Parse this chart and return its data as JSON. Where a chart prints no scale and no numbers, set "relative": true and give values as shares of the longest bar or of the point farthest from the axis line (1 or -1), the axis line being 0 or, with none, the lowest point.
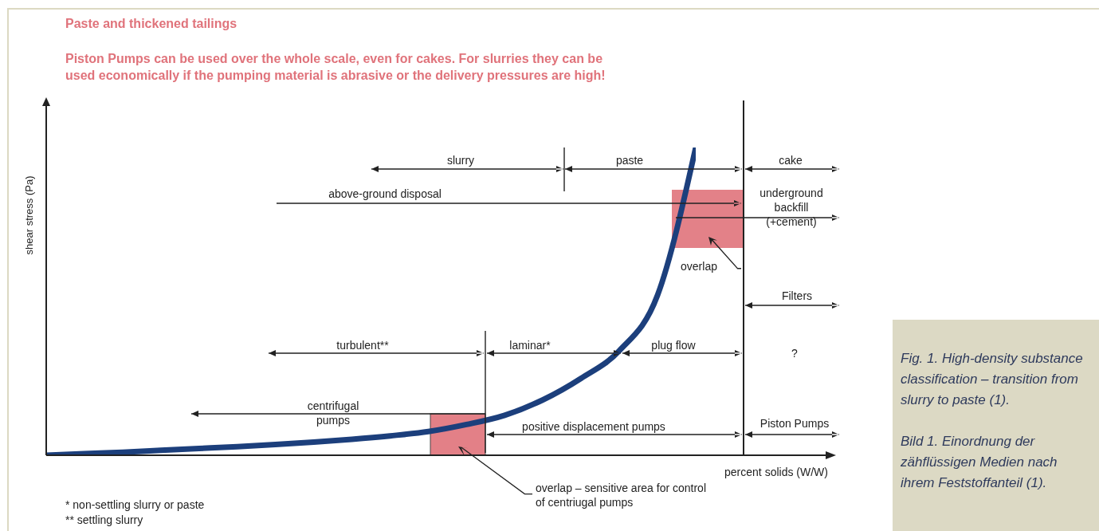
{
  "chart_data": {
    "type": "line",
    "title": "Paste and thickened tailings",
    "subtitle": "Piston Pumps can be used over the whole scale, even for cakes. For slurries they can be used economically if the pumping material is abrasive or the delivery pressures are high!",
    "xlabel": "percent solids (W/W)",
    "ylabel": "shear stress (Pa)",
    "relative": true,
    "marker": "none",
    "categories": [
      null,
      null,
      null,
      null,
      null,
      null,
      null,
      null,
      null,
      null,
      null,
      null,
      null,
      null,
      null,
      null,
      null,
      null
    ],
    "series": [
      {
        "color": "#1c3f7c",
        "values": [
          0,
          0.005,
          0.01,
          0.016,
          0.022,
          0.028,
          0.035,
          0.043,
          0.052,
          0.063,
          0.077,
          0.1,
          0.13,
          0.18,
          0.25,
          0.34,
          0.52,
          1
        ]
      }
    ],
    "annotations": [
      "slurry",
      "paste",
      "cake",
      "above-ground disposal",
      "underground backfill (+cement)",
      "overlap",
      "Filters",
      "?",
      "turbulent**",
      "laminar*",
      "plug flow",
      "centrifugal pumps",
      "positive displacement pumps",
      "Piston Pumps",
      "overlap – sensitive area for control of centriugal pumps",
      "* non-settling slurry or paste",
      "** settling slurry",
      "Fig. 1. High-density substance classification – transition from slurry to paste (1).",
      "Bild 1. Einordnung der zähflüssigen Medien nach ihrem Feststoffanteil (1)."
    ]
  }
}
